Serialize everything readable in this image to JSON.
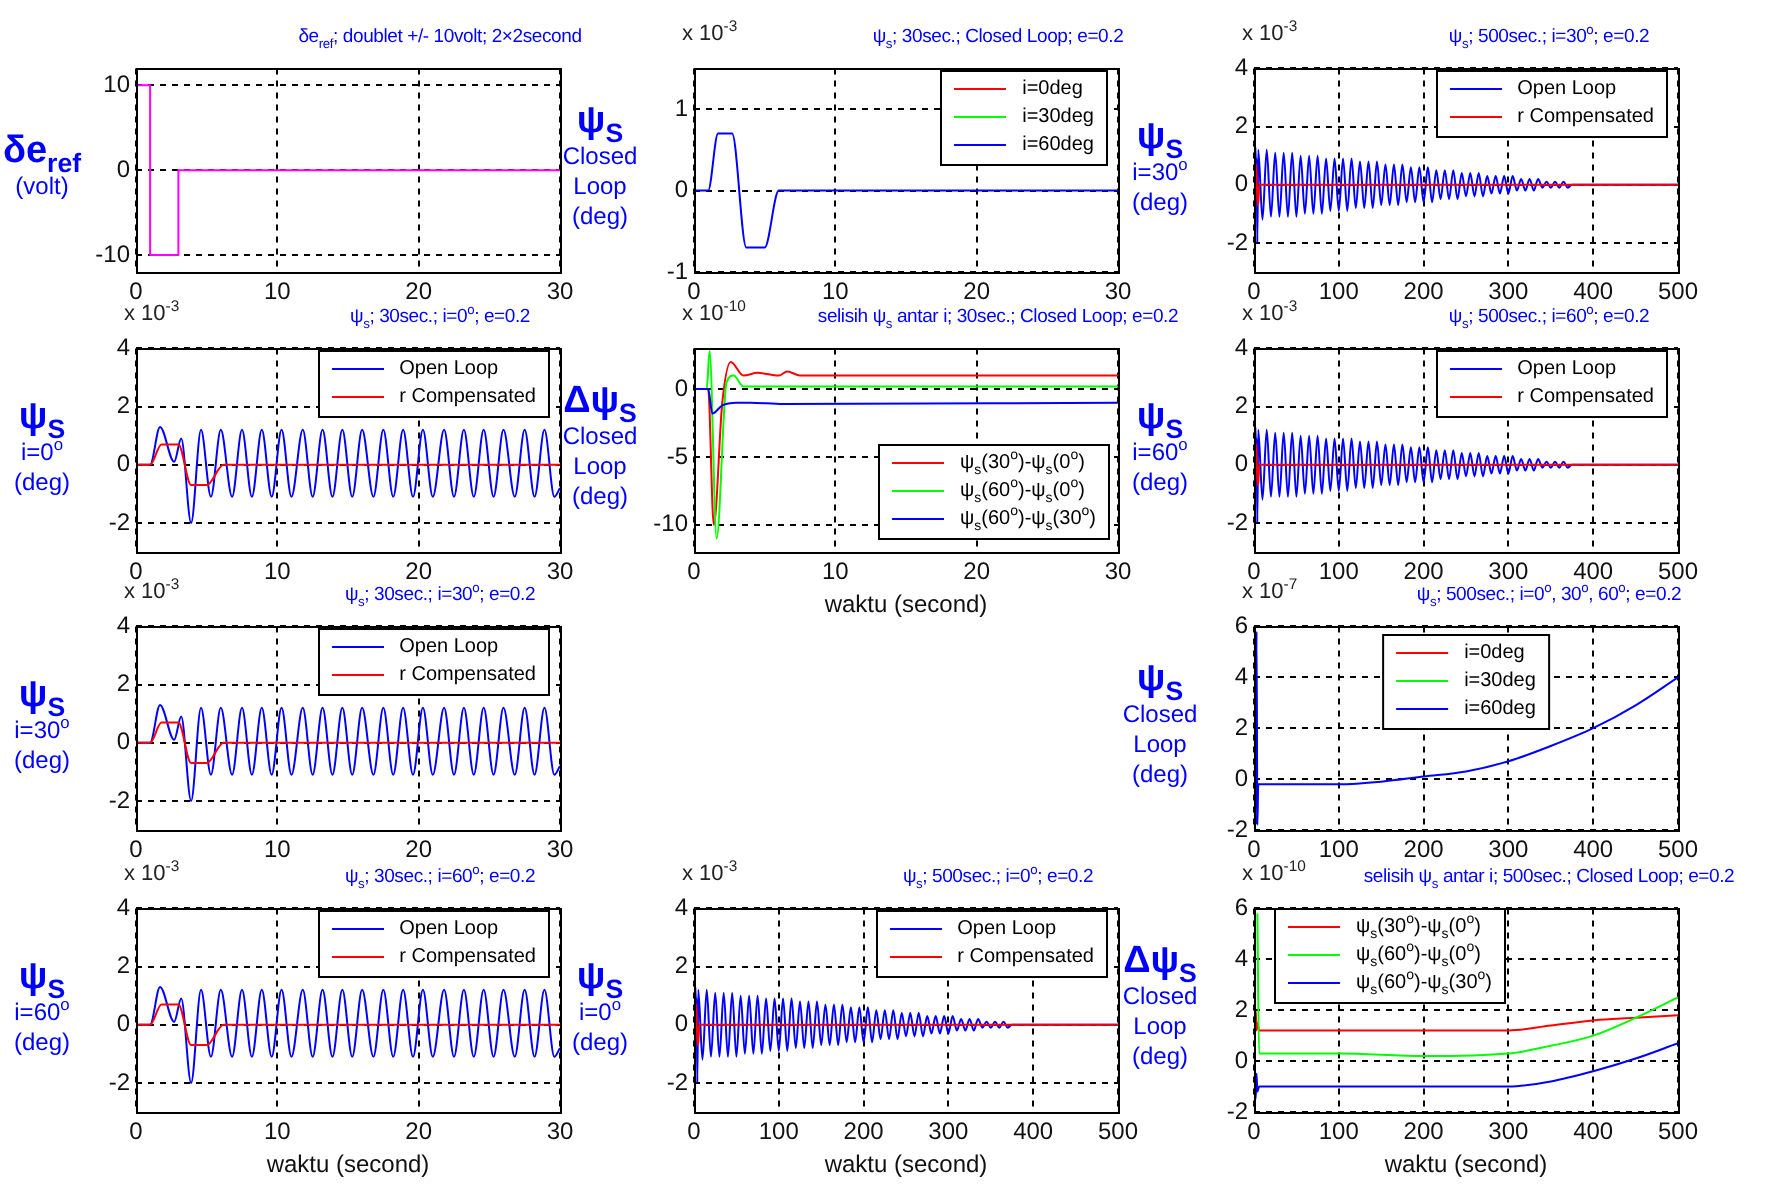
{
  "chart_data": [
    {
      "type": "step",
      "title": "δe$_{ref}$; doublet +/- 10volt; 2×2second",
      "ylabel": "δe$_{ref}$\n(volt)",
      "xlim": [
        0,
        30
      ],
      "xticks": [
        0,
        10,
        20,
        30
      ],
      "ylim": [
        -12,
        12
      ],
      "yticks": [
        -10,
        0,
        10
      ],
      "grid": true,
      "series": [
        {
          "color": "#ff00ff",
          "x": [
            0,
            1,
            3,
            5,
            30
          ],
          "values": [
            0,
            10,
            -10,
            0,
            0
          ]
        }
      ]
    },
    {
      "type": "line",
      "title": "ψ$_{s}$; 30sec.; Closed Loop; e=0.2",
      "ylabel": "ψ$_{S}$\nClosed\nLoop\n(deg)",
      "annotations": [
        "x 10$^{-3}$"
      ],
      "xlim": [
        0,
        30
      ],
      "xticks": [
        0,
        10,
        20,
        30
      ],
      "ylim": [
        -1,
        1.5
      ],
      "yticks": [
        -1,
        0,
        1
      ],
      "grid": true,
      "legend": "top right",
      "series": [
        {
          "name": "i=0deg",
          "color": "#ff0000",
          "values": [
            null
          ]
        },
        {
          "name": "i=30deg",
          "color": "#00ff00",
          "values": [
            null
          ]
        },
        {
          "name": "i=60deg",
          "color": "#0000ff",
          "x": [
            0,
            1,
            1.7,
            2.7,
            3.7,
            5,
            6,
            30
          ],
          "values": [
            0,
            0,
            0.7,
            0.7,
            -0.7,
            -0.7,
            0,
            0
          ]
        }
      ]
    },
    {
      "type": "line",
      "title": "ψ$_{s}$; 500sec.; i=30$^{o}$; e=0.2",
      "ylabel": "ψ$_{S}$\ni=30$^{o}$\n(deg)",
      "annotations": [
        "x 10$^{-3}$"
      ],
      "xlim": [
        0,
        500
      ],
      "xticks": [
        0,
        100,
        200,
        300,
        400,
        500
      ],
      "ylim": [
        -3,
        4
      ],
      "yticks": [
        -2,
        0,
        2,
        4
      ],
      "grid": true,
      "legend": "top right",
      "series": [
        {
          "name": "Open Loop",
          "color": "#0000ff",
          "x": [
            0,
            1,
            1.7,
            2.7,
            3.2,
            3.9,
            5,
            10,
            15,
            20,
            25,
            30,
            35,
            40,
            45,
            50,
            55,
            60,
            65,
            70,
            75,
            80,
            85,
            90,
            95,
            100,
            105,
            110,
            115,
            120,
            125,
            130,
            135,
            140,
            145,
            150,
            155,
            160,
            165,
            170,
            175,
            180,
            185,
            190,
            195,
            200,
            205,
            210,
            215,
            220,
            225,
            230,
            235,
            240,
            245,
            250,
            255,
            260,
            265,
            270,
            275,
            280,
            285,
            290,
            295,
            300,
            305,
            310,
            315,
            320,
            325,
            330,
            335,
            340,
            345,
            350,
            355,
            360,
            365,
            370,
            375,
            380,
            385,
            500
          ],
          "values": [
            0,
            0,
            1.3,
            0.1,
            0.9,
            -2,
            1.2,
            -1.2,
            1.2,
            -1.1,
            1.1,
            -1.1,
            1.1,
            -1.1,
            1.1,
            -1.1,
            1,
            -1,
            1,
            -1,
            1,
            -1,
            0.9,
            -0.9,
            0.9,
            -0.9,
            0.9,
            -0.9,
            0.9,
            -0.8,
            0.8,
            -0.8,
            0.8,
            -0.8,
            0.8,
            -0.7,
            0.7,
            -0.7,
            0.7,
            -0.7,
            0.7,
            -0.6,
            0.6,
            -0.6,
            0.6,
            -0.6,
            0.6,
            -0.6,
            0.5,
            -0.5,
            0.5,
            -0.5,
            0.5,
            -0.5,
            0.4,
            -0.4,
            0.4,
            -0.4,
            0.4,
            -0.4,
            0.3,
            -0.3,
            0.3,
            -0.3,
            0.3,
            -0.3,
            0.3,
            -0.2,
            0.2,
            -0.2,
            0.2,
            -0.2,
            0.2,
            -0.1,
            0.1,
            -0.1,
            0.1,
            -0.1,
            0.1,
            -0.1,
            0,
            0,
            0,
            0
          ]
        },
        {
          "name": "r Compensated",
          "color": "#ff0000",
          "x": [
            0,
            1,
            1.8,
            3,
            3.9,
            5,
            6.2,
            500
          ],
          "values": [
            0,
            0,
            0.7,
            0.7,
            -0.7,
            -0.7,
            0,
            0
          ]
        }
      ]
    },
    {
      "type": "line",
      "title": "ψ$_{s}$; 30sec.; i=0$^{o}$; e=0.2",
      "ylabel": "ψ$_{S}$\ni=0$^{o}$\n(deg)",
      "annotations": [
        "x 10$^{-3}$"
      ],
      "xlim": [
        0,
        30
      ],
      "xticks": [
        0,
        10,
        20,
        30
      ],
      "ylim": [
        -3,
        4
      ],
      "yticks": [
        -2,
        0,
        2,
        4
      ],
      "grid": true,
      "legend": "top right",
      "series": [
        {
          "name": "Open Loop",
          "color": "#0000ff",
          "x": [
            0,
            1,
            1.7,
            2.7,
            3.2,
            3.9,
            4.6,
            5.3,
            6,
            6.8,
            7.5,
            8.2,
            8.9,
            9.6,
            10.3,
            11,
            11.8,
            12.5,
            13.2,
            13.9,
            14.6,
            15.3,
            16,
            16.8,
            17.5,
            18.2,
            18.9,
            19.6,
            20.3,
            21,
            21.8,
            22.5,
            23.2,
            23.9,
            24.6,
            25.3,
            26,
            26.8,
            27.5,
            28.2,
            28.9,
            29.6,
            30
          ],
          "values": [
            0,
            0,
            1.3,
            0.1,
            0.9,
            -2,
            1.2,
            -1.1,
            1.2,
            -1.1,
            1.2,
            -1.1,
            1.2,
            -1.1,
            1.2,
            -1.1,
            1.2,
            -1.1,
            1.2,
            -1.1,
            1.2,
            -1.1,
            1.2,
            -1.1,
            1.2,
            -1.1,
            1.2,
            -1.1,
            1.2,
            -1.1,
            1.2,
            -1.1,
            1.2,
            -1.1,
            1.2,
            -1.1,
            1.2,
            -1.1,
            1.2,
            -1.1,
            1.2,
            -1.1,
            -0.8
          ]
        },
        {
          "name": "r Compensated",
          "color": "#ff0000",
          "x": [
            0,
            1,
            1.8,
            3,
            3.9,
            5,
            6.2,
            30
          ],
          "values": [
            0,
            0,
            0.7,
            0.7,
            -0.7,
            -0.7,
            0,
            0
          ]
        }
      ]
    },
    {
      "type": "line",
      "title": "selisih ψ$_{s}$ antar i; 30sec.; Closed Loop; e=0.2",
      "ylabel": "Δψ$_{S}$\nClosed\nLoop\n(deg)",
      "xlabel": "waktu (second)",
      "annotations": [
        "x 10$^{-10}$"
      ],
      "xlim": [
        0,
        30
      ],
      "xticks": [
        0,
        10,
        20,
        30
      ],
      "ylim": [
        -12,
        3
      ],
      "yticks": [
        -10,
        -5,
        0
      ],
      "grid": true,
      "legend": "bottom right",
      "series": [
        {
          "name": "ψ$_{s}$(30$^{o}$)-ψ$_{s}$(0$^{o}$)",
          "color": "#ff0000",
          "x": [
            0,
            1,
            1.4,
            2,
            2.6,
            3.5,
            4.5,
            6,
            6.6,
            7.5,
            30
          ],
          "values": [
            0,
            0,
            -10,
            -1,
            2,
            1,
            1.2,
            1,
            1.3,
            1,
            1
          ]
        },
        {
          "name": "ψ$_{s}$(60$^{o}$)-ψ$_{s}$(0$^{o}$)",
          "color": "#00ff00",
          "x": [
            0,
            0.9,
            1.1,
            1.6,
            2.3,
            2.8,
            3.5,
            30
          ],
          "values": [
            0,
            0,
            2.8,
            -11,
            0.5,
            1,
            0.2,
            0.2
          ]
        },
        {
          "name": "ψ$_{s}$(60$^{o}$)-ψ$_{s}$(30$^{o}$)",
          "color": "#0000ff",
          "x": [
            0,
            1,
            1.3,
            2,
            3,
            4,
            6.3,
            30
          ],
          "values": [
            0,
            0,
            -1.8,
            -1.2,
            -1,
            -1,
            -1.1,
            -1
          ]
        }
      ]
    },
    {
      "type": "line",
      "title": "ψ$_{s}$; 500sec.; i=60$^{o}$; e=0.2",
      "ylabel": "ψ$_{S}$\ni=60$^{o}$\n(deg)",
      "annotations": [
        "x 10$^{-3}$"
      ],
      "xlim": [
        0,
        500
      ],
      "xticks": [
        0,
        100,
        200,
        300,
        400,
        500
      ],
      "ylim": [
        -3,
        4
      ],
      "yticks": [
        -2,
        0,
        2,
        4
      ],
      "grid": true,
      "legend": "top right",
      "series": [
        {
          "name": "Open Loop",
          "color": "#0000ff",
          "x": [
            0,
            1,
            1.7,
            2.7,
            3.2,
            3.9,
            5,
            10,
            15,
            20,
            25,
            30,
            35,
            40,
            45,
            50,
            55,
            60,
            65,
            70,
            75,
            80,
            85,
            90,
            95,
            100,
            105,
            110,
            115,
            120,
            125,
            130,
            135,
            140,
            145,
            150,
            155,
            160,
            165,
            170,
            175,
            180,
            185,
            190,
            195,
            200,
            205,
            210,
            215,
            220,
            225,
            230,
            235,
            240,
            245,
            250,
            255,
            260,
            265,
            270,
            275,
            280,
            285,
            290,
            295,
            300,
            305,
            310,
            315,
            320,
            325,
            330,
            335,
            340,
            345,
            350,
            355,
            360,
            365,
            370,
            375,
            380,
            385,
            500
          ],
          "values": [
            0,
            0,
            1.3,
            0.1,
            0.9,
            -2,
            1.2,
            -1.2,
            1.2,
            -1.1,
            1.1,
            -1.1,
            1.1,
            -1.1,
            1.1,
            -1.1,
            1,
            -1,
            1,
            -1,
            1,
            -1,
            0.9,
            -0.9,
            0.9,
            -0.9,
            0.9,
            -0.9,
            0.9,
            -0.8,
            0.8,
            -0.8,
            0.8,
            -0.8,
            0.8,
            -0.7,
            0.7,
            -0.7,
            0.7,
            -0.7,
            0.7,
            -0.6,
            0.6,
            -0.6,
            0.6,
            -0.6,
            0.6,
            -0.6,
            0.5,
            -0.5,
            0.5,
            -0.5,
            0.5,
            -0.5,
            0.4,
            -0.4,
            0.4,
            -0.4,
            0.4,
            -0.4,
            0.3,
            -0.3,
            0.3,
            -0.3,
            0.3,
            -0.3,
            0.3,
            -0.2,
            0.2,
            -0.2,
            0.2,
            -0.2,
            0.2,
            -0.1,
            0.1,
            -0.1,
            0.1,
            -0.1,
            0.1,
            -0.1,
            0,
            0,
            0,
            0
          ]
        },
        {
          "name": "r Compensated",
          "color": "#ff0000",
          "x": [
            0,
            1,
            1.8,
            3,
            3.9,
            5,
            6.2,
            500
          ],
          "values": [
            0,
            0,
            0.7,
            0.7,
            -0.7,
            -0.7,
            0,
            0
          ]
        }
      ]
    },
    {
      "type": "line",
      "title": "ψ$_{s}$; 30sec.; i=30$^{o}$; e=0.2",
      "ylabel": "ψ$_{S}$\ni=30$^{o}$\n(deg)",
      "annotations": [
        "x 10$^{-3}$"
      ],
      "xlim": [
        0,
        30
      ],
      "xticks": [
        0,
        10,
        20,
        30
      ],
      "ylim": [
        -3,
        4
      ],
      "yticks": [
        -2,
        0,
        2,
        4
      ],
      "grid": true,
      "legend": "top right",
      "series": [
        {
          "name": "Open Loop",
          "color": "#0000ff",
          "x": [
            0,
            1,
            1.7,
            2.7,
            3.2,
            3.9,
            4.6,
            5.3,
            6,
            6.8,
            7.5,
            8.2,
            8.9,
            9.6,
            10.3,
            11,
            11.8,
            12.5,
            13.2,
            13.9,
            14.6,
            15.3,
            16,
            16.8,
            17.5,
            18.2,
            18.9,
            19.6,
            20.3,
            21,
            21.8,
            22.5,
            23.2,
            23.9,
            24.6,
            25.3,
            26,
            26.8,
            27.5,
            28.2,
            28.9,
            29.6,
            30
          ],
          "values": [
            0,
            0,
            1.3,
            0.1,
            0.9,
            -2,
            1.2,
            -1.1,
            1.2,
            -1.1,
            1.2,
            -1.1,
            1.2,
            -1.1,
            1.2,
            -1.1,
            1.2,
            -1.1,
            1.2,
            -1.1,
            1.2,
            -1.1,
            1.2,
            -1.1,
            1.2,
            -1.1,
            1.2,
            -1.1,
            1.2,
            -1.1,
            1.2,
            -1.1,
            1.2,
            -1.1,
            1.2,
            -1.1,
            1.2,
            -1.1,
            1.2,
            -1.1,
            1.2,
            -1.1,
            -0.8
          ]
        },
        {
          "name": "r Compensated",
          "color": "#ff0000",
          "x": [
            0,
            1,
            1.8,
            3,
            3.9,
            5,
            6.2,
            30
          ],
          "values": [
            0,
            0,
            0.7,
            0.7,
            -0.7,
            -0.7,
            0,
            0
          ]
        }
      ]
    },
    {
      "type": "line",
      "title": "ψ$_{s}$; 500sec.; i=0$^{o}$, 30$^{o}$, 60$^{o}$; e=0.2",
      "ylabel": "ψ$_{S}$\nClosed\nLoop\n(deg)",
      "annotations": [
        "x 10$^{-7}$"
      ],
      "xlim": [
        0,
        500
      ],
      "xticks": [
        0,
        100,
        200,
        300,
        400,
        500
      ],
      "ylim": [
        -2,
        6
      ],
      "yticks": [
        -2,
        0,
        2,
        4,
        6
      ],
      "grid": true,
      "legend": "top",
      "series": [
        {
          "name": "i=0deg",
          "color": "#ff0000",
          "values": [
            null
          ]
        },
        {
          "name": "i=30deg",
          "color": "#00ff00",
          "values": [
            null
          ]
        },
        {
          "name": "i=60deg",
          "color": "#0000ff",
          "x": [
            0,
            1,
            2,
            3,
            4,
            5,
            50,
            100,
            150,
            200,
            250,
            300,
            350,
            400,
            450,
            500
          ],
          "values": [
            -0.2,
            5.8,
            -1.8,
            5.8,
            -1.8,
            -0.2,
            -0.2,
            -0.2,
            -0.1,
            0.1,
            0.3,
            0.7,
            1.3,
            2,
            2.9,
            4
          ]
        }
      ]
    },
    {
      "type": "line",
      "title": "ψ$_{s}$; 30sec.; i=60$^{o}$; e=0.2",
      "ylabel": "ψ$_{S}$\ni=60$^{o}$\n(deg)",
      "xlabel": "waktu (second)",
      "annotations": [
        "x 10$^{-3}$"
      ],
      "xlim": [
        0,
        30
      ],
      "xticks": [
        0,
        10,
        20,
        30
      ],
      "ylim": [
        -3,
        4
      ],
      "yticks": [
        -2,
        0,
        2,
        4
      ],
      "grid": true,
      "legend": "top right",
      "series": [
        {
          "name": "Open Loop",
          "color": "#0000ff",
          "x": [
            0,
            1,
            1.7,
            2.7,
            3.2,
            3.9,
            4.6,
            5.3,
            6,
            6.8,
            7.5,
            8.2,
            8.9,
            9.6,
            10.3,
            11,
            11.8,
            12.5,
            13.2,
            13.9,
            14.6,
            15.3,
            16,
            16.8,
            17.5,
            18.2,
            18.9,
            19.6,
            20.3,
            21,
            21.8,
            22.5,
            23.2,
            23.9,
            24.6,
            25.3,
            26,
            26.8,
            27.5,
            28.2,
            28.9,
            29.6,
            30
          ],
          "values": [
            0,
            0,
            1.3,
            0.1,
            0.9,
            -2,
            1.2,
            -1.1,
            1.2,
            -1.1,
            1.2,
            -1.1,
            1.2,
            -1.1,
            1.2,
            -1.1,
            1.2,
            -1.1,
            1.2,
            -1.1,
            1.2,
            -1.1,
            1.2,
            -1.1,
            1.2,
            -1.1,
            1.2,
            -1.1,
            1.2,
            -1.1,
            1.2,
            -1.1,
            1.2,
            -1.1,
            1.2,
            -1.1,
            1.2,
            -1.1,
            1.2,
            -1.1,
            1.2,
            -1.1,
            -0.8
          ]
        },
        {
          "name": "r Compensated",
          "color": "#ff0000",
          "x": [
            0,
            1,
            1.8,
            3,
            3.9,
            5,
            6.2,
            30
          ],
          "values": [
            0,
            0,
            0.7,
            0.7,
            -0.7,
            -0.7,
            0,
            0
          ]
        }
      ]
    },
    {
      "type": "line",
      "title": "ψ$_{s}$; 500sec.; i=0$^{o}$; e=0.2",
      "ylabel": "ψ$_{S}$\ni=0$^{o}$\n(deg)",
      "xlabel": "waktu (second)",
      "annotations": [
        "x 10$^{-3}$"
      ],
      "xlim": [
        0,
        500
      ],
      "xticks": [
        0,
        100,
        200,
        300,
        400,
        500
      ],
      "ylim": [
        -3,
        4
      ],
      "yticks": [
        -2,
        0,
        2,
        4
      ],
      "grid": true,
      "legend": "top right",
      "series": [
        {
          "name": "Open Loop",
          "color": "#0000ff",
          "x": [
            0,
            1,
            1.7,
            2.7,
            3.2,
            3.9,
            5,
            10,
            15,
            20,
            25,
            30,
            35,
            40,
            45,
            50,
            55,
            60,
            65,
            70,
            75,
            80,
            85,
            90,
            95,
            100,
            105,
            110,
            115,
            120,
            125,
            130,
            135,
            140,
            145,
            150,
            155,
            160,
            165,
            170,
            175,
            180,
            185,
            190,
            195,
            200,
            205,
            210,
            215,
            220,
            225,
            230,
            235,
            240,
            245,
            250,
            255,
            260,
            265,
            270,
            275,
            280,
            285,
            290,
            295,
            300,
            305,
            310,
            315,
            320,
            325,
            330,
            335,
            340,
            345,
            350,
            355,
            360,
            365,
            370,
            375,
            380,
            385,
            500
          ],
          "values": [
            0,
            0,
            1.3,
            0.1,
            0.9,
            -2,
            1.2,
            -1.2,
            1.2,
            -1.1,
            1.1,
            -1.1,
            1.1,
            -1.1,
            1.1,
            -1.1,
            1,
            -1,
            1,
            -1,
            1,
            -1,
            0.9,
            -0.9,
            0.9,
            -0.9,
            0.9,
            -0.9,
            0.9,
            -0.8,
            0.8,
            -0.8,
            0.8,
            -0.8,
            0.8,
            -0.7,
            0.7,
            -0.7,
            0.7,
            -0.7,
            0.7,
            -0.6,
            0.6,
            -0.6,
            0.6,
            -0.6,
            0.6,
            -0.6,
            0.5,
            -0.5,
            0.5,
            -0.5,
            0.5,
            -0.5,
            0.4,
            -0.4,
            0.4,
            -0.4,
            0.4,
            -0.4,
            0.3,
            -0.3,
            0.3,
            -0.3,
            0.3,
            -0.3,
            0.3,
            -0.2,
            0.2,
            -0.2,
            0.2,
            -0.2,
            0.2,
            -0.1,
            0.1,
            -0.1,
            0.1,
            -0.1,
            0.1,
            -0.1,
            0,
            0,
            0,
            0
          ]
        },
        {
          "name": "r Compensated",
          "color": "#ff0000",
          "x": [
            0,
            1,
            1.8,
            3,
            3.9,
            5,
            6.2,
            500
          ],
          "values": [
            0,
            0,
            0.7,
            0.7,
            -0.7,
            -0.7,
            0,
            0
          ]
        }
      ]
    },
    {
      "type": "line",
      "title": "selisih ψ$_{s}$ antar i; 500sec.; Closed Loop; e=0.2",
      "ylabel": "Δψ$_{S}$\nClosed\nLoop\n(deg)",
      "xlabel": "waktu (second)",
      "annotations": [
        "x 10$^{-10}$"
      ],
      "xlim": [
        0,
        500
      ],
      "xticks": [
        0,
        100,
        200,
        300,
        400,
        500
      ],
      "ylim": [
        -2,
        6
      ],
      "yticks": [
        -2,
        0,
        2,
        4,
        6
      ],
      "grid": true,
      "legend": "top left",
      "series": [
        {
          "name": "ψ$_{s}$(30$^{o}$)-ψ$_{s}$(0$^{o}$)",
          "color": "#ff0000",
          "x": [
            0,
            2,
            3,
            4,
            6,
            100,
            200,
            300,
            350,
            400,
            450,
            500
          ],
          "values": [
            1.2,
            2,
            1.2,
            1.5,
            1.2,
            1.2,
            1.2,
            1.2,
            1.4,
            1.6,
            1.7,
            1.8
          ]
        },
        {
          "name": "ψ$_{s}$(60$^{o}$)-ψ$_{s}$(0$^{o}$)",
          "color": "#00ff00",
          "x": [
            4,
            6,
            100,
            200,
            300,
            350,
            400,
            450,
            500
          ],
          "values": [
            5.8,
            0.3,
            0.3,
            0.2,
            0.3,
            0.6,
            1,
            1.7,
            2.5
          ]
        },
        {
          "name": "ψ$_{s}$(60$^{o}$)-ψ$_{s}$(30$^{o}$)",
          "color": "#0000ff",
          "x": [
            0,
            2,
            3,
            4,
            6,
            100,
            200,
            300,
            350,
            400,
            450,
            500
          ],
          "values": [
            -1,
            -1.5,
            -0.5,
            -1.2,
            -1,
            -1,
            -1,
            -1,
            -0.8,
            -0.4,
            0.1,
            0.7
          ]
        }
      ]
    }
  ]
}
